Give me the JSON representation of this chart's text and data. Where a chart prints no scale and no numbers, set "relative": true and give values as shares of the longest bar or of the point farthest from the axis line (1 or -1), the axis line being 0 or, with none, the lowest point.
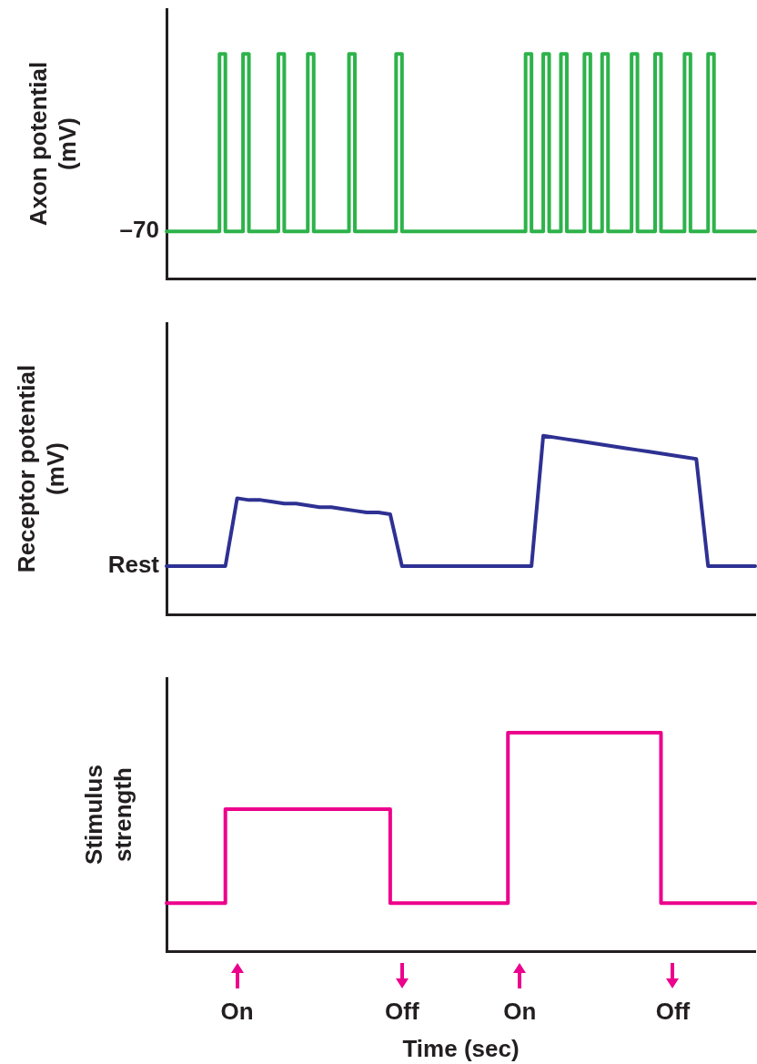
{
  "chart_data": [
    {
      "type": "step",
      "relative": true,
      "ylabel": "Axon potential\n(mV)",
      "tick_labels": false,
      "annotations": [
        "–70"
      ],
      "categories": [
        null,
        null,
        null,
        null,
        null,
        null,
        null,
        null,
        null,
        null,
        null,
        null,
        null,
        null,
        null,
        null,
        null,
        null,
        null,
        null,
        null,
        null,
        null,
        null,
        null,
        null,
        null,
        null,
        null,
        null,
        null,
        null,
        null,
        null,
        null,
        null,
        null,
        null,
        null,
        null,
        null,
        null,
        null,
        null,
        null,
        null,
        null,
        null,
        null,
        null,
        null,
        null,
        null,
        null,
        null,
        null,
        null,
        null,
        null,
        null,
        null,
        null,
        null,
        null,
        null,
        null,
        null,
        null,
        null,
        null,
        null,
        null,
        null,
        null,
        null,
        null,
        null,
        null,
        null,
        null,
        null,
        null,
        null,
        null,
        null,
        null,
        null,
        null,
        null,
        null,
        null,
        null,
        null,
        null,
        null,
        null,
        null,
        null,
        null,
        null,
        null
      ],
      "series": [
        {
          "color": "#2db34a",
          "values": [
            0.21,
            0.21,
            0.21,
            0.21,
            0.21,
            0.21,
            0.21,
            0.21,
            0.21,
            0.21,
            1,
            0.21,
            0.21,
            0.21,
            1,
            0.21,
            0.21,
            0.21,
            0.21,
            0.21,
            1,
            0.21,
            0.21,
            0.21,
            0.21,
            1,
            0.21,
            0.21,
            0.21,
            0.21,
            0.21,
            0.21,
            1,
            0.21,
            0.21,
            0.21,
            0.21,
            0.21,
            0.21,
            0.21,
            1,
            0.21,
            0.21,
            0.21,
            0.21,
            0.21,
            0.21,
            0.21,
            0.21,
            0.21,
            0.21,
            0.21,
            0.21,
            0.21,
            0.21,
            0.21,
            0.21,
            0.21,
            0.21,
            0.21,
            0.21,
            0.21,
            1,
            0.21,
            0.21,
            1,
            0.21,
            0.21,
            1,
            0.21,
            0.21,
            0.21,
            1,
            0.21,
            0.21,
            1,
            0.21,
            0.21,
            0.21,
            0.21,
            1,
            0.21,
            0.21,
            0.21,
            1,
            0.21,
            0.21,
            0.21,
            0.21,
            1,
            0.21,
            0.21,
            0.21,
            1,
            0.21,
            0.21,
            0.21,
            0.21,
            0.21,
            0.21,
            0.21
          ]
        }
      ]
    },
    {
      "type": "line",
      "relative": true,
      "ylabel": "Receptor potential\n(mV)",
      "tick_labels": false,
      "annotations": [
        "Rest"
      ],
      "categories": [
        null,
        null,
        null,
        null,
        null,
        null,
        null,
        null,
        null,
        null,
        null,
        null,
        null,
        null,
        null,
        null,
        null,
        null,
        null,
        null,
        null,
        null,
        null,
        null,
        null,
        null,
        null,
        null,
        null,
        null,
        null,
        null,
        null,
        null,
        null,
        null,
        null,
        null,
        null,
        null,
        null,
        null,
        null,
        null,
        null,
        null,
        null,
        null,
        null,
        null,
        null
      ],
      "series": [
        {
          "color": "#2e3192",
          "values": [
            0.27,
            0.27,
            0.27,
            0.27,
            0.27,
            0.27,
            0.65,
            0.64,
            0.64,
            0.63,
            0.62,
            0.62,
            0.61,
            0.6,
            0.6,
            0.59,
            0.58,
            0.57,
            0.57,
            0.56,
            0.27,
            0.27,
            0.27,
            0.27,
            0.27,
            0.27,
            0.27,
            0.27,
            0.27,
            0.27,
            0.27,
            0.27,
            1,
            0.99,
            0.98,
            0.97,
            0.96,
            0.95,
            0.94,
            0.93,
            0.92,
            0.91,
            0.9,
            0.89,
            0.88,
            0.87,
            0.27,
            0.27,
            0.27,
            0.27,
            0.27
          ]
        }
      ]
    },
    {
      "type": "step",
      "relative": true,
      "ylabel": "Stimulus\nstrength",
      "xlabel": "Time (sec)",
      "tick_labels": "x",
      "categories": [
        null,
        null,
        null,
        null,
        null,
        null,
        "On",
        null,
        null,
        null,
        null,
        null,
        null,
        null,
        null,
        null,
        null,
        null,
        null,
        null,
        "Off",
        null,
        null,
        null,
        null,
        null,
        null,
        null,
        null,
        null,
        "On",
        null,
        null,
        null,
        null,
        null,
        null,
        null,
        null,
        null,
        null,
        null,
        null,
        "Off",
        null,
        null,
        null,
        null,
        null,
        null,
        null
      ],
      "series": [
        {
          "color": "#ec008c",
          "values": [
            0.22,
            0.22,
            0.22,
            0.22,
            0.22,
            0.22,
            0.65,
            0.65,
            0.65,
            0.65,
            0.65,
            0.65,
            0.65,
            0.65,
            0.65,
            0.65,
            0.65,
            0.65,
            0.65,
            0.65,
            0.22,
            0.22,
            0.22,
            0.22,
            0.22,
            0.22,
            0.22,
            0.22,
            0.22,
            0.22,
            1,
            1,
            1,
            1,
            1,
            1,
            1,
            1,
            1,
            1,
            1,
            1,
            1,
            0.22,
            0.22,
            0.22,
            0.22,
            0.22,
            0.22,
            0.22,
            0.22
          ]
        }
      ]
    }
  ]
}
